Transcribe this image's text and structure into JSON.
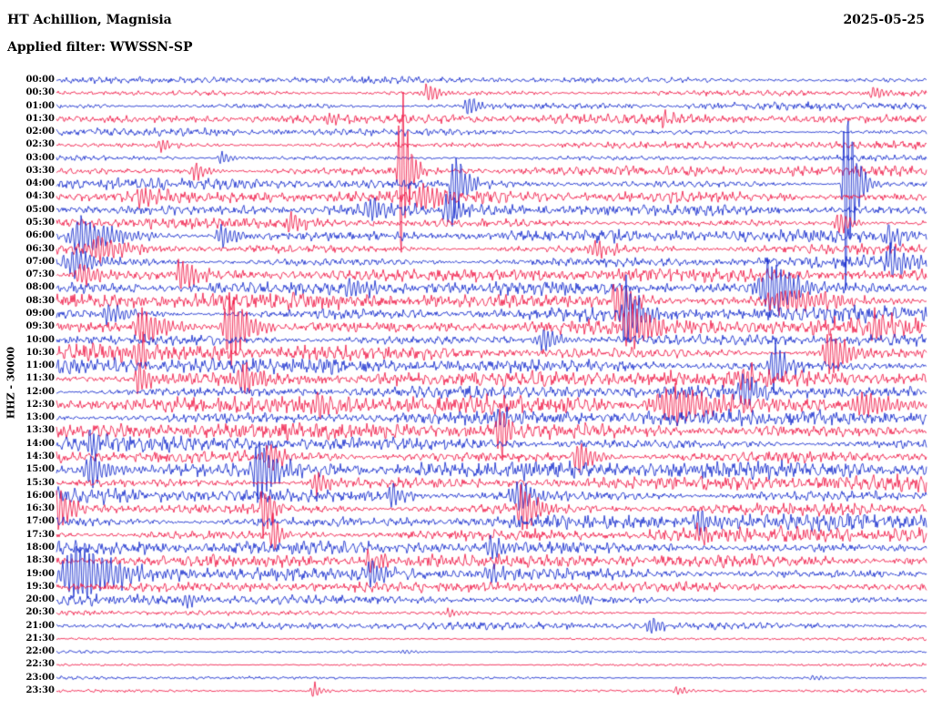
{
  "header": {
    "station_title": "HT Achillion, Magnisia",
    "date": "2025-05-25",
    "filter_label": "Applied filter: WWSSN-SP"
  },
  "axis": {
    "channel_gain_label": "HHZ - 30000"
  },
  "chart_data": {
    "type": "seismogram-helicorder",
    "station": "HT Achillion",
    "region": "Magnisia",
    "channel": "HHZ",
    "gain": 30000,
    "date": "2025-05-25",
    "filter": "WWSSN-SP",
    "row_interval_minutes": 30,
    "trace_colors": {
      "blue": "#1228cc",
      "red": "#f01745"
    },
    "rows": [
      {
        "time": "00:00",
        "color": "blue",
        "noise_amp": 2.2
      },
      {
        "time": "00:30",
        "color": "red",
        "noise_amp": 2.8
      },
      {
        "time": "01:00",
        "color": "blue",
        "noise_amp": 3.0
      },
      {
        "time": "01:30",
        "color": "red",
        "noise_amp": 3.2
      },
      {
        "time": "02:00",
        "color": "blue",
        "noise_amp": 2.6
      },
      {
        "time": "02:30",
        "color": "red",
        "noise_amp": 2.8
      },
      {
        "time": "03:00",
        "color": "blue",
        "noise_amp": 2.4
      },
      {
        "time": "03:30",
        "color": "red",
        "noise_amp": 3.6
      },
      {
        "time": "04:00",
        "color": "blue",
        "noise_amp": 3.8
      },
      {
        "time": "04:30",
        "color": "red",
        "noise_amp": 4.0
      },
      {
        "time": "05:00",
        "color": "blue",
        "noise_amp": 3.8
      },
      {
        "time": "05:30",
        "color": "red",
        "noise_amp": 3.8
      },
      {
        "time": "06:00",
        "color": "blue",
        "noise_amp": 4.5
      },
      {
        "time": "06:30",
        "color": "red",
        "noise_amp": 4.5
      },
      {
        "time": "07:00",
        "color": "blue",
        "noise_amp": 4.5
      },
      {
        "time": "07:30",
        "color": "red",
        "noise_amp": 4.5
      },
      {
        "time": "08:00",
        "color": "blue",
        "noise_amp": 4.5
      },
      {
        "time": "08:30",
        "color": "red",
        "noise_amp": 5.5
      },
      {
        "time": "09:00",
        "color": "blue",
        "noise_amp": 5.5
      },
      {
        "time": "09:30",
        "color": "red",
        "noise_amp": 6.0
      },
      {
        "time": "10:00",
        "color": "blue",
        "noise_amp": 5.5
      },
      {
        "time": "10:30",
        "color": "red",
        "noise_amp": 5.5
      },
      {
        "time": "11:00",
        "color": "blue",
        "noise_amp": 5.5
      },
      {
        "time": "11:30",
        "color": "red",
        "noise_amp": 5.5
      },
      {
        "time": "12:00",
        "color": "blue",
        "noise_amp": 4.5
      },
      {
        "time": "12:30",
        "color": "red",
        "noise_amp": 6.0
      },
      {
        "time": "13:00",
        "color": "blue",
        "noise_amp": 5.5
      },
      {
        "time": "13:30",
        "color": "red",
        "noise_amp": 5.5
      },
      {
        "time": "14:00",
        "color": "blue",
        "noise_amp": 5.5
      },
      {
        "time": "14:30",
        "color": "red",
        "noise_amp": 6.0
      },
      {
        "time": "15:00",
        "color": "blue",
        "noise_amp": 6.0
      },
      {
        "time": "15:30",
        "color": "red",
        "noise_amp": 5.5
      },
      {
        "time": "16:00",
        "color": "blue",
        "noise_amp": 6.0
      },
      {
        "time": "16:30",
        "color": "red",
        "noise_amp": 6.0
      },
      {
        "time": "17:00",
        "color": "blue",
        "noise_amp": 5.5
      },
      {
        "time": "17:30",
        "color": "red",
        "noise_amp": 5.5
      },
      {
        "time": "18:00",
        "color": "blue",
        "noise_amp": 4.5
      },
      {
        "time": "18:30",
        "color": "red",
        "noise_amp": 4.5
      },
      {
        "time": "19:00",
        "color": "blue",
        "noise_amp": 4.5
      },
      {
        "time": "19:30",
        "color": "red",
        "noise_amp": 3.5
      },
      {
        "time": "20:00",
        "color": "blue",
        "noise_amp": 3.5
      },
      {
        "time": "20:30",
        "color": "red",
        "noise_amp": 1.8
      },
      {
        "time": "21:00",
        "color": "blue",
        "noise_amp": 2.5
      },
      {
        "time": "21:30",
        "color": "red",
        "noise_amp": 1.2
      },
      {
        "time": "22:00",
        "color": "blue",
        "noise_amp": 1.2
      },
      {
        "time": "22:30",
        "color": "red",
        "noise_amp": 1.2
      },
      {
        "time": "23:00",
        "color": "blue",
        "noise_amp": 1.2
      },
      {
        "time": "23:30",
        "color": "red",
        "noise_amp": 1.4
      }
    ],
    "events": [
      {
        "time": "00:30",
        "x": 0.427,
        "amp": 13,
        "w": 0.01
      },
      {
        "time": "00:30",
        "x": 0.94,
        "amp": 9,
        "w": 0.008
      },
      {
        "time": "01:00",
        "x": 0.474,
        "amp": 13,
        "w": 0.01
      },
      {
        "time": "01:30",
        "x": 0.315,
        "amp": 10,
        "w": 0.01
      },
      {
        "time": "01:30",
        "x": 0.7,
        "amp": 8,
        "w": 0.012
      },
      {
        "time": "02:30",
        "x": 0.12,
        "amp": 8,
        "w": 0.01
      },
      {
        "time": "03:00",
        "x": 0.19,
        "amp": 9,
        "w": 0.008
      },
      {
        "time": "03:30",
        "x": 0.396,
        "amp": 135,
        "w": 0.006
      },
      {
        "time": "03:30",
        "x": 0.16,
        "amp": 12,
        "w": 0.01
      },
      {
        "time": "04:00",
        "x": 0.908,
        "amp": 140,
        "w": 0.007
      },
      {
        "time": "04:00",
        "x": 0.458,
        "amp": 50,
        "w": 0.008
      },
      {
        "time": "04:30",
        "x": 0.42,
        "amp": 22,
        "w": 0.012
      },
      {
        "time": "04:30",
        "x": 0.1,
        "amp": 14,
        "w": 0.012
      },
      {
        "time": "05:00",
        "x": 0.452,
        "amp": 28,
        "w": 0.01
      },
      {
        "time": "05:00",
        "x": 0.36,
        "amp": 18,
        "w": 0.01
      },
      {
        "time": "05:30",
        "x": 0.9,
        "amp": 16,
        "w": 0.01
      },
      {
        "time": "05:30",
        "x": 0.27,
        "amp": 14,
        "w": 0.012
      },
      {
        "time": "06:00",
        "x": 0.03,
        "amp": 26,
        "w": 0.025
      },
      {
        "time": "06:00",
        "x": 0.96,
        "amp": 15,
        "w": 0.012
      },
      {
        "time": "06:00",
        "x": 0.19,
        "amp": 16,
        "w": 0.012
      },
      {
        "time": "06:30",
        "x": 0.05,
        "amp": 18,
        "w": 0.02
      },
      {
        "time": "06:30",
        "x": 0.62,
        "amp": 12,
        "w": 0.015
      },
      {
        "time": "07:00",
        "x": 0.02,
        "amp": 20,
        "w": 0.018
      },
      {
        "time": "07:00",
        "x": 0.96,
        "amp": 20,
        "w": 0.015
      },
      {
        "time": "07:30",
        "x": 0.145,
        "amp": 22,
        "w": 0.012
      },
      {
        "time": "07:30",
        "x": 0.03,
        "amp": 16,
        "w": 0.015
      },
      {
        "time": "08:00",
        "x": 0.82,
        "amp": 40,
        "w": 0.02
      },
      {
        "time": "08:00",
        "x": 0.34,
        "amp": 16,
        "w": 0.012
      },
      {
        "time": "08:30",
        "x": 0.645,
        "amp": 32,
        "w": 0.012
      },
      {
        "time": "08:30",
        "x": 0.84,
        "amp": 15,
        "w": 0.04
      },
      {
        "time": "09:00",
        "x": 0.655,
        "amp": 45,
        "w": 0.012
      },
      {
        "time": "09:00",
        "x": 0.06,
        "amp": 14,
        "w": 0.015
      },
      {
        "time": "09:30",
        "x": 0.2,
        "amp": 50,
        "w": 0.014
      },
      {
        "time": "09:30",
        "x": 0.1,
        "amp": 22,
        "w": 0.02
      },
      {
        "time": "09:30",
        "x": 0.66,
        "amp": 26,
        "w": 0.02
      },
      {
        "time": "09:30",
        "x": 0.94,
        "amp": 18,
        "w": 0.015
      },
      {
        "time": "10:00",
        "x": 0.56,
        "amp": 14,
        "w": 0.015
      },
      {
        "time": "10:30",
        "x": 0.89,
        "amp": 32,
        "w": 0.015
      },
      {
        "time": "10:30",
        "x": 0.095,
        "amp": 26,
        "w": 0.01
      },
      {
        "time": "11:00",
        "x": 0.825,
        "amp": 32,
        "w": 0.012
      },
      {
        "time": "11:30",
        "x": 0.095,
        "amp": 26,
        "w": 0.008
      },
      {
        "time": "11:30",
        "x": 0.215,
        "amp": 22,
        "w": 0.012
      },
      {
        "time": "11:30",
        "x": 0.79,
        "amp": 18,
        "w": 0.01
      },
      {
        "time": "12:00",
        "x": 0.79,
        "amp": 32,
        "w": 0.008
      },
      {
        "time": "12:30",
        "x": 0.71,
        "amp": 24,
        "w": 0.04
      },
      {
        "time": "12:30",
        "x": 0.93,
        "amp": 16,
        "w": 0.03
      },
      {
        "time": "12:30",
        "x": 0.3,
        "amp": 12,
        "w": 0.02
      },
      {
        "time": "13:00",
        "x": 0.51,
        "amp": 16,
        "w": 0.01
      },
      {
        "time": "13:30",
        "x": 0.51,
        "amp": 42,
        "w": 0.007
      },
      {
        "time": "14:00",
        "x": 0.04,
        "amp": 18,
        "w": 0.01
      },
      {
        "time": "14:30",
        "x": 0.6,
        "amp": 24,
        "w": 0.01
      },
      {
        "time": "14:30",
        "x": 0.245,
        "amp": 22,
        "w": 0.01
      },
      {
        "time": "15:00",
        "x": 0.233,
        "amp": 46,
        "w": 0.013
      },
      {
        "time": "15:00",
        "x": 0.04,
        "amp": 22,
        "w": 0.015
      },
      {
        "time": "15:30",
        "x": 0.3,
        "amp": 16,
        "w": 0.012
      },
      {
        "time": "16:00",
        "x": 0.385,
        "amp": 18,
        "w": 0.01
      },
      {
        "time": "16:00",
        "x": 0.53,
        "amp": 22,
        "w": 0.015
      },
      {
        "time": "16:30",
        "x": 0.003,
        "amp": 30,
        "w": 0.01
      },
      {
        "time": "16:30",
        "x": 0.238,
        "amp": 45,
        "w": 0.006
      },
      {
        "time": "16:30",
        "x": 0.536,
        "amp": 32,
        "w": 0.012
      },
      {
        "time": "17:00",
        "x": 0.74,
        "amp": 16,
        "w": 0.012
      },
      {
        "time": "17:30",
        "x": 0.249,
        "amp": 28,
        "w": 0.006
      },
      {
        "time": "17:30",
        "x": 0.74,
        "amp": 14,
        "w": 0.01
      },
      {
        "time": "18:00",
        "x": 0.5,
        "amp": 16,
        "w": 0.01
      },
      {
        "time": "18:30",
        "x": 0.36,
        "amp": 12,
        "w": 0.012
      },
      {
        "time": "19:00",
        "x": 0.025,
        "amp": 40,
        "w": 0.03
      },
      {
        "time": "19:00",
        "x": 0.362,
        "amp": 20,
        "w": 0.01
      },
      {
        "time": "19:00",
        "x": 0.5,
        "amp": 13,
        "w": 0.012
      },
      {
        "time": "20:00",
        "x": 0.15,
        "amp": 11,
        "w": 0.008
      },
      {
        "time": "20:00",
        "x": 0.6,
        "amp": 9,
        "w": 0.01
      },
      {
        "time": "20:30",
        "x": 0.45,
        "amp": 5,
        "w": 0.01
      },
      {
        "time": "21:00",
        "x": 0.683,
        "amp": 14,
        "w": 0.008
      },
      {
        "time": "22:00",
        "x": 0.4,
        "amp": 3,
        "w": 0.01
      },
      {
        "time": "23:00",
        "x": 0.87,
        "amp": 4,
        "w": 0.008
      },
      {
        "time": "23:30",
        "x": 0.296,
        "amp": 12,
        "w": 0.006
      },
      {
        "time": "23:30",
        "x": 0.714,
        "amp": 6,
        "w": 0.008
      }
    ]
  }
}
